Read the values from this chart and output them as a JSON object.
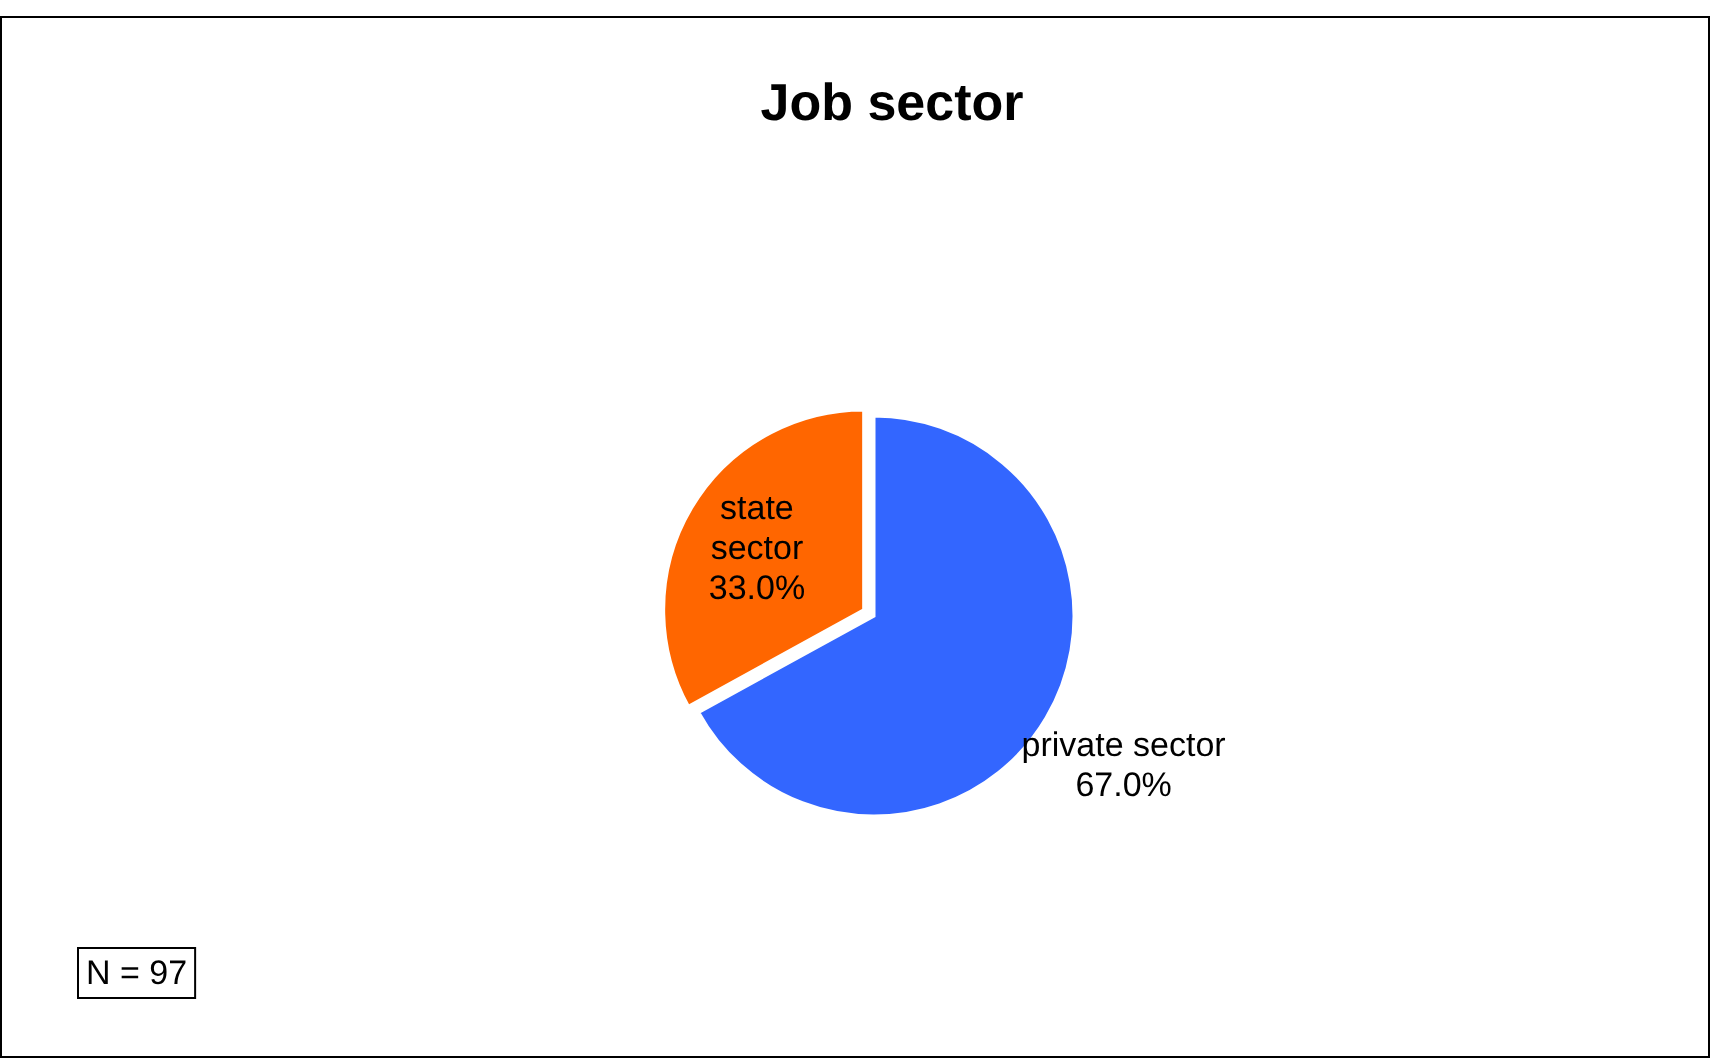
{
  "chart_data": {
    "type": "pie",
    "title": "Job sector",
    "categories": [
      "private sector",
      "state sector"
    ],
    "values": [
      67.0,
      33.0
    ],
    "value_labels": [
      "67.0%",
      "33.0%"
    ],
    "colors": [
      "#3366ff",
      "#ff6600"
    ],
    "annotations": [
      "N = 97"
    ]
  }
}
